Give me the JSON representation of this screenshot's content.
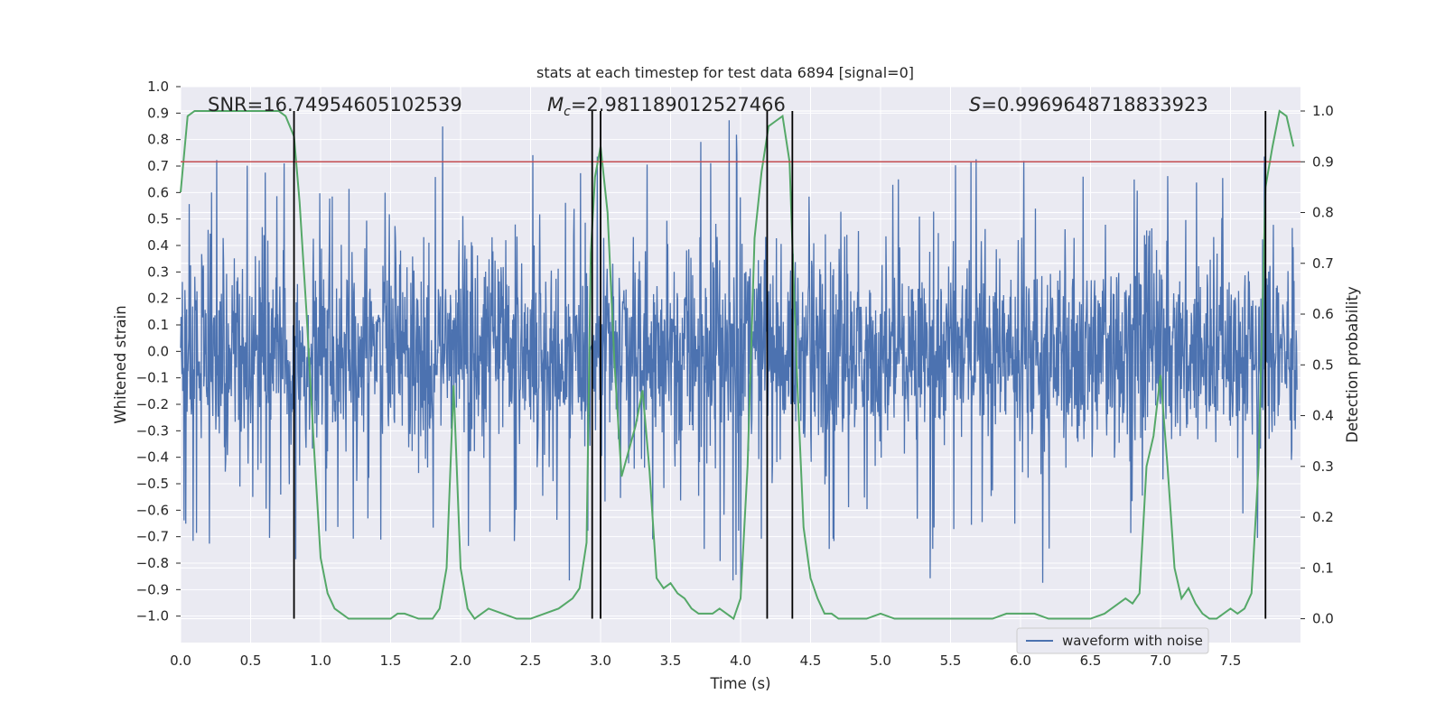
{
  "chart_data": {
    "type": "line",
    "title": "stats at each timestep for test data 6894 [signal=0]",
    "xlabel": "Time (s)",
    "ylabel": "Whitened strain",
    "y2label": "Detection probability",
    "xlim": [
      0.0,
      8.0
    ],
    "ylim": [
      -1.1,
      1.0
    ],
    "y2lim": [
      -0.047,
      1.048
    ],
    "x_ticks": [
      "0.0",
      "0.5",
      "1.0",
      "1.5",
      "2.0",
      "2.5",
      "3.0",
      "3.5",
      "4.0",
      "4.5",
      "5.0",
      "5.5",
      "6.0",
      "6.5",
      "7.0",
      "7.5"
    ],
    "y_ticks": [
      "1.0",
      "0.9",
      "0.8",
      "0.7",
      "0.6",
      "0.5",
      "0.4",
      "0.3",
      "0.2",
      "0.1",
      "0.0",
      "−0.1",
      "−0.2",
      "−0.3",
      "−0.4",
      "−0.5",
      "−0.6",
      "−0.7",
      "−0.8",
      "−0.9",
      "−1.0"
    ],
    "y2_ticks": [
      "1.0",
      "0.9",
      "0.8",
      "0.7",
      "0.6",
      "0.5",
      "0.4",
      "0.3",
      "0.2",
      "0.1",
      "0.0"
    ],
    "grid": true,
    "legend_placement": "lower-right",
    "annotations": {
      "snr": "SNR=16.74954605102539",
      "mc_symbol": "M",
      "mc_sub": "c",
      "mc_value": "=2.981189012527466",
      "s_symbol": "S",
      "s_value": "=0.9969648718833923"
    },
    "colors": {
      "background": "#eaeaf2",
      "grid": "#ffffff",
      "strain": "#4c72b0",
      "probability": "#55a868",
      "threshold": "#c44e52",
      "markers": "#000000"
    },
    "threshold": 0.9,
    "markers_x": [
      0.81,
      2.94,
      3.0,
      4.19,
      4.37,
      7.75
    ],
    "series": [
      {
        "name": "waveform with noise",
        "axis": "left",
        "description_values": "dense noise, core band about ±0.35, spikes up to ±0.9"
      },
      {
        "axis": "right",
        "x": [
          0.0,
          0.05,
          0.1,
          0.2,
          0.3,
          0.4,
          0.5,
          0.6,
          0.7,
          0.75,
          0.81,
          0.85,
          0.9,
          0.95,
          1.0,
          1.05,
          1.1,
          1.2,
          1.3,
          1.4,
          1.5,
          1.55,
          1.6,
          1.7,
          1.8,
          1.85,
          1.9,
          1.95,
          2.0,
          2.05,
          2.1,
          2.15,
          2.2,
          2.3,
          2.4,
          2.5,
          2.6,
          2.7,
          2.8,
          2.85,
          2.9,
          2.93,
          2.96,
          3.0,
          3.05,
          3.1,
          3.15,
          3.2,
          3.25,
          3.3,
          3.35,
          3.4,
          3.45,
          3.5,
          3.55,
          3.6,
          3.65,
          3.7,
          3.75,
          3.8,
          3.85,
          3.9,
          3.95,
          4.0,
          4.05,
          4.1,
          4.15,
          4.2,
          4.25,
          4.3,
          4.35,
          4.4,
          4.45,
          4.5,
          4.55,
          4.6,
          4.65,
          4.7,
          4.8,
          4.9,
          5.0,
          5.1,
          5.2,
          5.4,
          5.6,
          5.8,
          5.9,
          6.0,
          6.1,
          6.2,
          6.3,
          6.4,
          6.5,
          6.6,
          6.65,
          6.7,
          6.75,
          6.8,
          6.85,
          6.9,
          6.95,
          7.0,
          7.05,
          7.1,
          7.15,
          7.2,
          7.25,
          7.3,
          7.35,
          7.4,
          7.45,
          7.5,
          7.55,
          7.6,
          7.65,
          7.7,
          7.75,
          7.8,
          7.85,
          7.9,
          7.95
        ],
        "values": [
          0.84,
          0.99,
          1.0,
          1.0,
          1.0,
          1.0,
          1.0,
          1.0,
          1.0,
          0.99,
          0.95,
          0.82,
          0.6,
          0.35,
          0.12,
          0.05,
          0.02,
          0.0,
          0.0,
          0.0,
          0.0,
          0.01,
          0.01,
          0.0,
          0.0,
          0.02,
          0.1,
          0.46,
          0.1,
          0.02,
          0.0,
          0.01,
          0.02,
          0.01,
          0.0,
          0.0,
          0.01,
          0.02,
          0.04,
          0.06,
          0.15,
          0.72,
          0.87,
          0.93,
          0.8,
          0.5,
          0.28,
          0.33,
          0.38,
          0.45,
          0.29,
          0.08,
          0.06,
          0.07,
          0.05,
          0.04,
          0.02,
          0.01,
          0.01,
          0.01,
          0.02,
          0.01,
          0.0,
          0.04,
          0.3,
          0.75,
          0.88,
          0.97,
          0.98,
          0.99,
          0.9,
          0.5,
          0.18,
          0.08,
          0.04,
          0.01,
          0.01,
          0.0,
          0.0,
          0.0,
          0.01,
          0.0,
          0.0,
          0.0,
          0.0,
          0.0,
          0.01,
          0.01,
          0.01,
          0.0,
          0.0,
          0.0,
          0.0,
          0.01,
          0.02,
          0.03,
          0.04,
          0.03,
          0.05,
          0.3,
          0.36,
          0.48,
          0.3,
          0.1,
          0.04,
          0.06,
          0.03,
          0.01,
          0.0,
          0.0,
          0.01,
          0.02,
          0.01,
          0.02,
          0.05,
          0.3,
          0.85,
          0.93,
          1.0,
          0.99,
          0.93
        ]
      }
    ]
  }
}
